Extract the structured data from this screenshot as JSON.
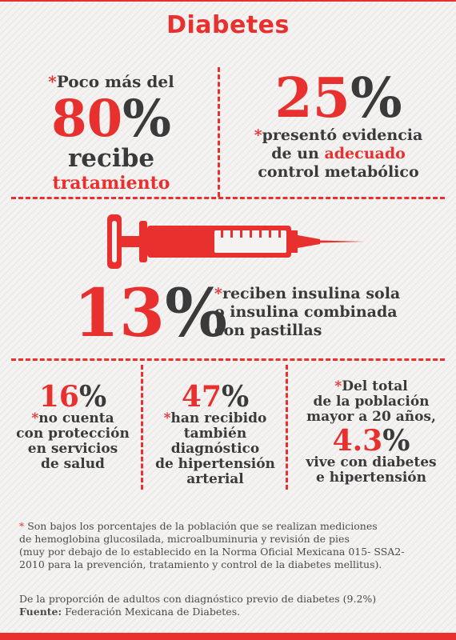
{
  "title": "Diabetes",
  "block1": {
    "asterisk": "*",
    "line1": "Poco más del",
    "percent": "80",
    "percent_sign": "%",
    "line3": "recibe",
    "line4": "tratamiento"
  },
  "block2": {
    "percent": "25",
    "percent_sign": "%",
    "asterisk": "*",
    "line1": "presentó evidencia",
    "line2_pre": "de un ",
    "line2_red": "adecuado",
    "line3": "control metabólico"
  },
  "block3": {
    "percent": "13",
    "percent_sign": "%",
    "asterisk": "*",
    "line1": "reciben insulina sola",
    "line2": "o insulina combinada",
    "line3": "con pastillas"
  },
  "col1": {
    "percent": "16",
    "percent_sign": "%",
    "asterisk": "*",
    "line1": "no cuenta",
    "line2": "con protección",
    "line3": "en servicios",
    "line4": "de salud"
  },
  "col2": {
    "percent": "47",
    "percent_sign": "%",
    "asterisk": "*",
    "line1": "han recibido",
    "line2": "también",
    "line3": "diagnóstico",
    "line4": "de hipertensión",
    "line5": "arterial"
  },
  "col3": {
    "asterisk": "*",
    "line1": "Del total",
    "line2": "de la población",
    "line3": "mayor a 20 años,",
    "percent": "4.3",
    "percent_sign": "%",
    "line4": "vive con diabetes",
    "line5": "e hipertensión"
  },
  "footnote": {
    "asterisk": "*",
    "line1": " Son bajos los porcentajes de la población que se realizan mediciones",
    "line2": "de hemoglobina glucosilada, microalbuminuria y revisión de pies",
    "line3": "(muy por debajo de lo establecido en la Norma Oficial Mexicana 015- SSA2-",
    "line4": "2010 para la prevención, tratamiento y control de la diabetes mellitus)."
  },
  "source": {
    "line1": "De la proporción de adultos con diagnóstico previo de diabetes (9.2%)",
    "label": "Fuente:",
    "text": " Federación Mexicana de Diabetes."
  },
  "colors": {
    "accent": "#e8302e",
    "text": "#3a3a3a",
    "background": "#f4f3f2"
  },
  "icons": [
    "syringe-icon"
  ]
}
